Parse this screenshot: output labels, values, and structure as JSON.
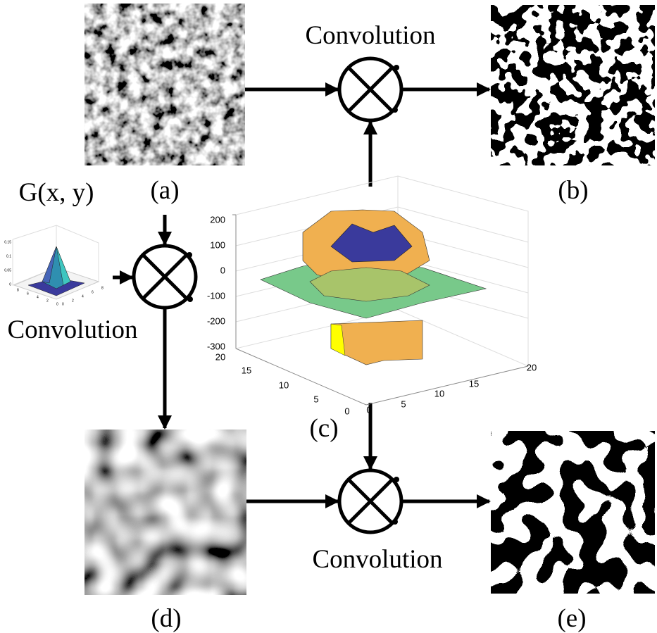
{
  "top_operator": {
    "label": "Convolution"
  },
  "kernel": {
    "label": "G(x, y)",
    "operator_label": "Convolution",
    "z_ticks": [
      0.15,
      0.1,
      0.05,
      0
    ],
    "x_ticks": [
      8,
      6,
      4,
      2,
      0
    ],
    "y_ticks": [
      0,
      2,
      4,
      6,
      8
    ]
  },
  "bottom_operator": {
    "label": "Convolution"
  },
  "panels": {
    "a": "(a)",
    "b": "(b)",
    "c": "(c)",
    "d": "(d)",
    "e": "(e)"
  },
  "surface_plot": {
    "z_ticks": [
      200,
      100,
      0,
      -100,
      -200,
      -300
    ],
    "y_ticks": [
      20,
      15,
      10,
      5,
      0
    ],
    "x_ticks": [
      0,
      5,
      10,
      15,
      20
    ]
  }
}
